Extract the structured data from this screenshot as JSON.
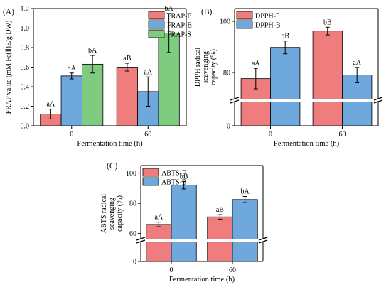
{
  "chart_data": [
    {
      "type": "bar",
      "panel_label": "(A)",
      "categories": [
        "0",
        "60"
      ],
      "xlabel": "Fermentation time (h)",
      "ylabel": "FRAP value (mM Fe(Ⅱ)E/g DW)",
      "ylim": [
        0,
        1.2
      ],
      "yticks": [
        "0.0",
        "0.2",
        "0.4",
        "0.6",
        "0.8",
        "1.0",
        "1.2"
      ],
      "legend_position": "top-left",
      "series": [
        {
          "name": "FRAP-F",
          "color": "#F07D7D",
          "values": [
            0.12,
            0.6
          ],
          "errors": [
            0.05,
            0.04
          ],
          "labels": [
            "aA",
            "aB"
          ]
        },
        {
          "name": "FRAP-B",
          "color": "#6FA8DC",
          "values": [
            0.51,
            0.35
          ],
          "errors": [
            0.03,
            0.15
          ],
          "labels": [
            "bA",
            "aA"
          ]
        },
        {
          "name": "FRAP-S",
          "color": "#7FCB7F",
          "values": [
            0.63,
            0.95
          ],
          "errors": [
            0.09,
            0.2
          ],
          "labels": [
            "bA",
            "bA"
          ]
        }
      ]
    },
    {
      "type": "bar",
      "panel_label": "(B)",
      "categories": [
        "0",
        "60"
      ],
      "xlabel": "Fermentation time (h)",
      "ylabel": "DPPH radical scavenging capacity (%)",
      "ylim_lower": [
        0,
        10
      ],
      "ylim_upper": [
        70,
        105
      ],
      "yticks": [
        "100",
        "80",
        "0"
      ],
      "legend_position": "top-left",
      "series": [
        {
          "name": "DPPH-F",
          "color": "#F07D7D",
          "values": [
            77.6,
            96.2
          ],
          "errors": [
            4.0,
            1.5
          ],
          "labels": [
            "aA",
            "bB"
          ]
        },
        {
          "name": "DPPH-B",
          "color": "#6FA8DC",
          "values": [
            89.8,
            79.0
          ],
          "errors": [
            2.5,
            3.0
          ],
          "labels": [
            "bB",
            "aA"
          ]
        }
      ]
    },
    {
      "type": "bar",
      "panel_label": "(C)",
      "categories": [
        "0",
        "60"
      ],
      "xlabel": "Fermentation time (h)",
      "ylabel": "ABTS radical scavenging capacity (%)",
      "ylim_lower": [
        0,
        10
      ],
      "ylim_upper": [
        57,
        105
      ],
      "yticks": [
        "100",
        "80",
        "60",
        "0"
      ],
      "legend_position": "top-left",
      "series": [
        {
          "name": "ABTS-F",
          "color": "#F07D7D",
          "values": [
            66.0,
            71.0
          ],
          "errors": [
            1.5,
            1.5
          ],
          "labels": [
            "aA",
            "aB"
          ]
        },
        {
          "name": "ABTS-B",
          "color": "#6FA8DC",
          "values": [
            92.0,
            82.5
          ],
          "errors": [
            2.5,
            2.0
          ],
          "labels": [
            "bB",
            "bA"
          ]
        }
      ]
    }
  ]
}
